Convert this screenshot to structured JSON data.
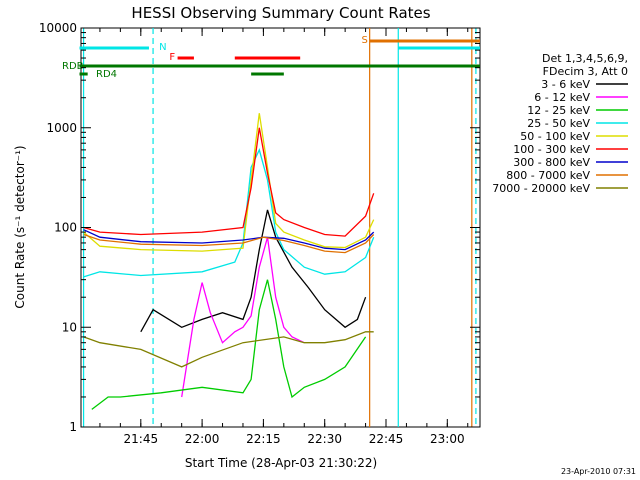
{
  "chart_data": {
    "type": "line",
    "title": "HESSI Observing Summary Count Rates",
    "xlabel": "Start Time (28-Apr-03 21:30:22)",
    "ylabel": "Count Rate (s⁻¹ detector⁻¹)",
    "y_scale": "log",
    "ylim": [
      1,
      10000
    ],
    "xlim": [
      "21:30:22",
      "23:08"
    ],
    "x_ticks": [
      "21:45",
      "22:00",
      "22:15",
      "22:30",
      "22:45",
      "23:00"
    ],
    "y_ticks": [
      "1",
      "10",
      "100",
      "1000",
      "10000"
    ],
    "legend_header": [
      "Det 1,3,4,5,6,9,",
      "FDecim 3, Att 0"
    ],
    "legend_position": "right",
    "series": [
      {
        "name": "3 - 6 keV",
        "color": "#000000",
        "x": [
          "21:45",
          "21:48",
          "21:55",
          "22:00",
          "22:05",
          "22:10",
          "22:12",
          "22:14",
          "22:16",
          "22:18",
          "22:22",
          "22:26",
          "22:30",
          "22:35",
          "22:38",
          "22:40"
        ],
        "y": [
          9,
          15,
          10,
          12,
          14,
          12,
          20,
          60,
          150,
          80,
          40,
          25,
          15,
          10,
          12,
          20
        ]
      },
      {
        "name": "6 - 12 keV",
        "color": "#ff00ff",
        "x": [
          "21:55",
          "21:58",
          "22:00",
          "22:02",
          "22:05",
          "22:08",
          "22:10",
          "22:12",
          "22:14",
          "22:16",
          "22:18",
          "22:20",
          "22:22",
          "22:25"
        ],
        "y": [
          2,
          12,
          28,
          14,
          7,
          9,
          10,
          13,
          40,
          80,
          20,
          10,
          8,
          7
        ]
      },
      {
        "name": "12 - 25 keV",
        "color": "#00cc00",
        "x": [
          "21:33",
          "21:37",
          "21:40",
          "21:50",
          "22:00",
          "22:10",
          "22:12",
          "22:14",
          "22:16",
          "22:18",
          "22:20",
          "22:22",
          "22:25",
          "22:30",
          "22:35",
          "22:40"
        ],
        "y": [
          1.5,
          2,
          2,
          2.2,
          2.5,
          2.2,
          3,
          15,
          30,
          12,
          4,
          2,
          2.5,
          3,
          4,
          8
        ]
      },
      {
        "name": "25 - 50 keV",
        "color": "#00e6e6",
        "x": [
          "21:31",
          "21:35",
          "21:45",
          "22:00",
          "22:08",
          "22:10",
          "22:12",
          "22:14",
          "22:16",
          "22:18",
          "22:20",
          "22:25",
          "22:30",
          "22:35",
          "22:40",
          "22:42"
        ],
        "y": [
          32,
          36,
          33,
          36,
          45,
          70,
          400,
          600,
          300,
          90,
          60,
          40,
          34,
          36,
          50,
          80
        ]
      },
      {
        "name": "50 - 100 keV",
        "color": "#dddd00",
        "x": [
          "21:31",
          "21:35",
          "21:45",
          "22:00",
          "22:10",
          "22:12",
          "22:14",
          "22:16",
          "22:18",
          "22:20",
          "22:25",
          "22:30",
          "22:35",
          "22:40",
          "22:42"
        ],
        "y": [
          90,
          65,
          60,
          58,
          62,
          300,
          1400,
          400,
          110,
          90,
          75,
          64,
          63,
          80,
          120
        ]
      },
      {
        "name": "100 - 300 keV",
        "color": "#ff0000",
        "x": [
          "21:31",
          "21:35",
          "21:45",
          "22:00",
          "22:10",
          "22:12",
          "22:14",
          "22:16",
          "22:18",
          "22:20",
          "22:25",
          "22:30",
          "22:35",
          "22:40",
          "22:42"
        ],
        "y": [
          100,
          90,
          85,
          90,
          100,
          250,
          1000,
          350,
          140,
          120,
          100,
          85,
          82,
          130,
          220
        ]
      },
      {
        "name": "300 - 800 keV",
        "color": "#0000cc",
        "x": [
          "21:31",
          "21:35",
          "21:45",
          "22:00",
          "22:10",
          "22:15",
          "22:20",
          "22:25",
          "22:30",
          "22:35",
          "22:40",
          "22:42"
        ],
        "y": [
          95,
          80,
          72,
          70,
          75,
          80,
          78,
          70,
          62,
          60,
          75,
          90
        ]
      },
      {
        "name": "800 - 7000 keV",
        "color": "#e07000",
        "x": [
          "21:31",
          "21:35",
          "21:45",
          "22:00",
          "22:10",
          "22:15",
          "22:20",
          "22:25",
          "22:30",
          "22:35",
          "22:40",
          "22:42"
        ],
        "y": [
          85,
          75,
          68,
          66,
          70,
          80,
          74,
          66,
          58,
          56,
          70,
          85
        ]
      },
      {
        "name": "7000 - 20000 keV",
        "color": "#808000",
        "x": [
          "21:31",
          "21:35",
          "21:45",
          "21:55",
          "22:00",
          "22:10",
          "22:20",
          "22:25",
          "22:30",
          "22:35",
          "22:40",
          "22:42"
        ],
        "y": [
          8,
          7,
          6,
          4,
          5,
          7,
          8,
          7,
          7,
          7.5,
          9,
          9
        ]
      }
    ],
    "flags": {
      "labels": [
        "N",
        "F",
        "S",
        "RDB",
        "RD4"
      ],
      "colors": {
        "night": "#00e6e6",
        "flare": "#ff0000",
        "saa": "#e07000",
        "decim": "#007700"
      }
    }
  },
  "footer": {
    "date": "23-Apr-2010 07:31"
  }
}
